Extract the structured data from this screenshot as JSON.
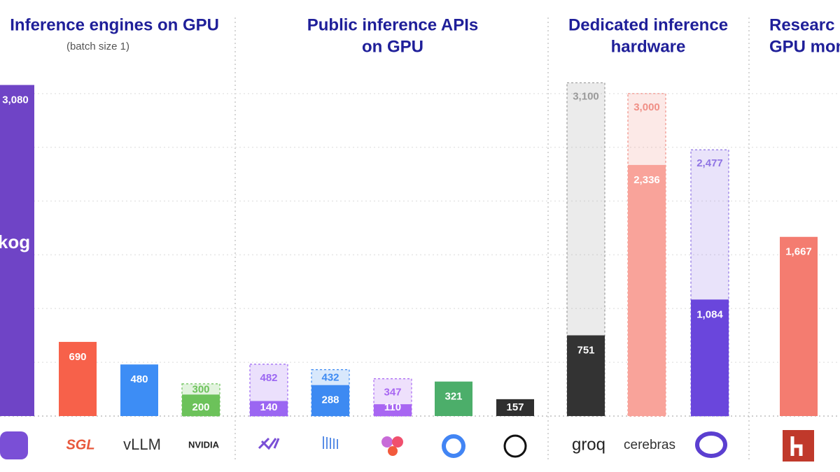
{
  "chart_data": {
    "type": "bar",
    "groups": [
      {
        "title": [
          "Inference engines on GPU"
        ],
        "subtitle": "(batch size 1)"
      },
      {
        "title": [
          "Public inference APIs",
          "on GPU"
        ]
      },
      {
        "title": [
          "Dedicated inference",
          "hardware"
        ]
      },
      {
        "title": [
          "Researc",
          "GPU mon"
        ]
      }
    ],
    "categories": [
      null,
      "SGL",
      "vLLM",
      "NVIDIA",
      null,
      null,
      null,
      null,
      null,
      "groq",
      "cerebras",
      null,
      null
    ],
    "series": [
      {
        "values": [
          3080,
          690,
          480,
          200,
          140,
          288,
          110,
          321,
          157,
          751,
          2336,
          1084,
          1667
        ],
        "value_labels": [
          "3,080",
          "690",
          "480",
          "200",
          "140",
          "288",
          "110",
          "321",
          "157",
          "751",
          "2,336",
          "1,084",
          "1,667"
        ],
        "colors": [
          "#6f44c6",
          "#f7614a",
          "#3d8df5",
          "#6cc25a",
          "#9b66f2",
          "#3d8af2",
          "#a866f2",
          "#4cae6a",
          "#2f2f2f",
          "#333333",
          "#f9a39a",
          "#6a46dc",
          "#f47c70"
        ]
      },
      {
        "values": [
          null,
          null,
          null,
          300,
          482,
          432,
          347,
          null,
          null,
          3100,
          3000,
          2477,
          null
        ],
        "value_labels": [
          null,
          null,
          null,
          "300",
          "482",
          "432",
          "347",
          null,
          null,
          "3,100",
          "3,000",
          "2,477",
          null
        ],
        "colors": [
          null,
          null,
          null,
          "#6cc25a",
          "#9b66f2",
          "#3d8af2",
          "#a866f2",
          null,
          null,
          "#9a9a9a",
          "#f08f86",
          "#8f74e4",
          null
        ],
        "style": "dashed"
      }
    ],
    "annotations": [
      "kog"
    ],
    "ylim": [
      0,
      3220
    ],
    "yticks": [
      0,
      500,
      1000,
      1500,
      2000,
      2500,
      3000
    ],
    "grid": true
  }
}
